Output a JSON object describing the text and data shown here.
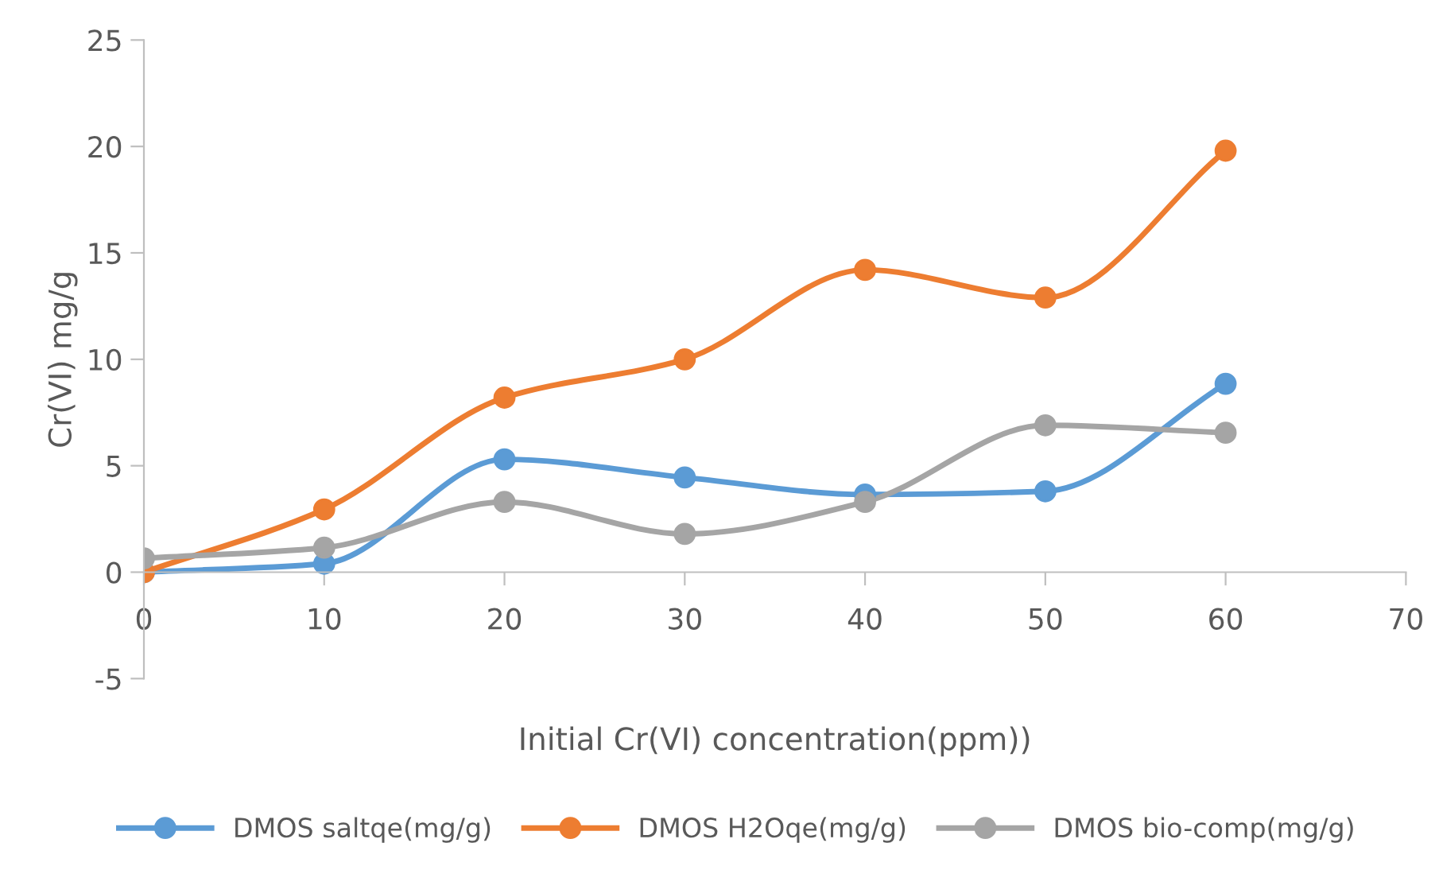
{
  "chart_data": {
    "type": "line",
    "xlabel": "Initial Cr(VI) concentration(ppm))",
    "ylabel": "Cr(VI) mg/g",
    "x": [
      0,
      10,
      20,
      30,
      40,
      50,
      60
    ],
    "series": [
      {
        "name": "DMOS saltqe(mg/g)",
        "color": "#5b9bd5",
        "values": [
          0,
          0.4,
          5.3,
          4.45,
          3.65,
          3.8,
          8.85
        ]
      },
      {
        "name": "DMOS H2Oqe(mg/g)",
        "color": "#ed7d31",
        "values": [
          0,
          2.95,
          8.2,
          10.0,
          14.2,
          12.9,
          19.8
        ]
      },
      {
        "name": "DMOS bio-comp(mg/g)",
        "color": "#a5a5a5",
        "values": [
          0.65,
          1.15,
          3.3,
          1.8,
          3.3,
          6.9,
          6.55
        ]
      }
    ],
    "xlim": [
      0,
      70
    ],
    "xticks": [
      0,
      10,
      20,
      30,
      40,
      50,
      60,
      70
    ],
    "ylim": [
      -5,
      25
    ],
    "yticks": [
      -5,
      0,
      5,
      10,
      15,
      20,
      25
    ],
    "marker": "circle",
    "line_style": "solid",
    "grid": false,
    "legend": "bottom"
  }
}
